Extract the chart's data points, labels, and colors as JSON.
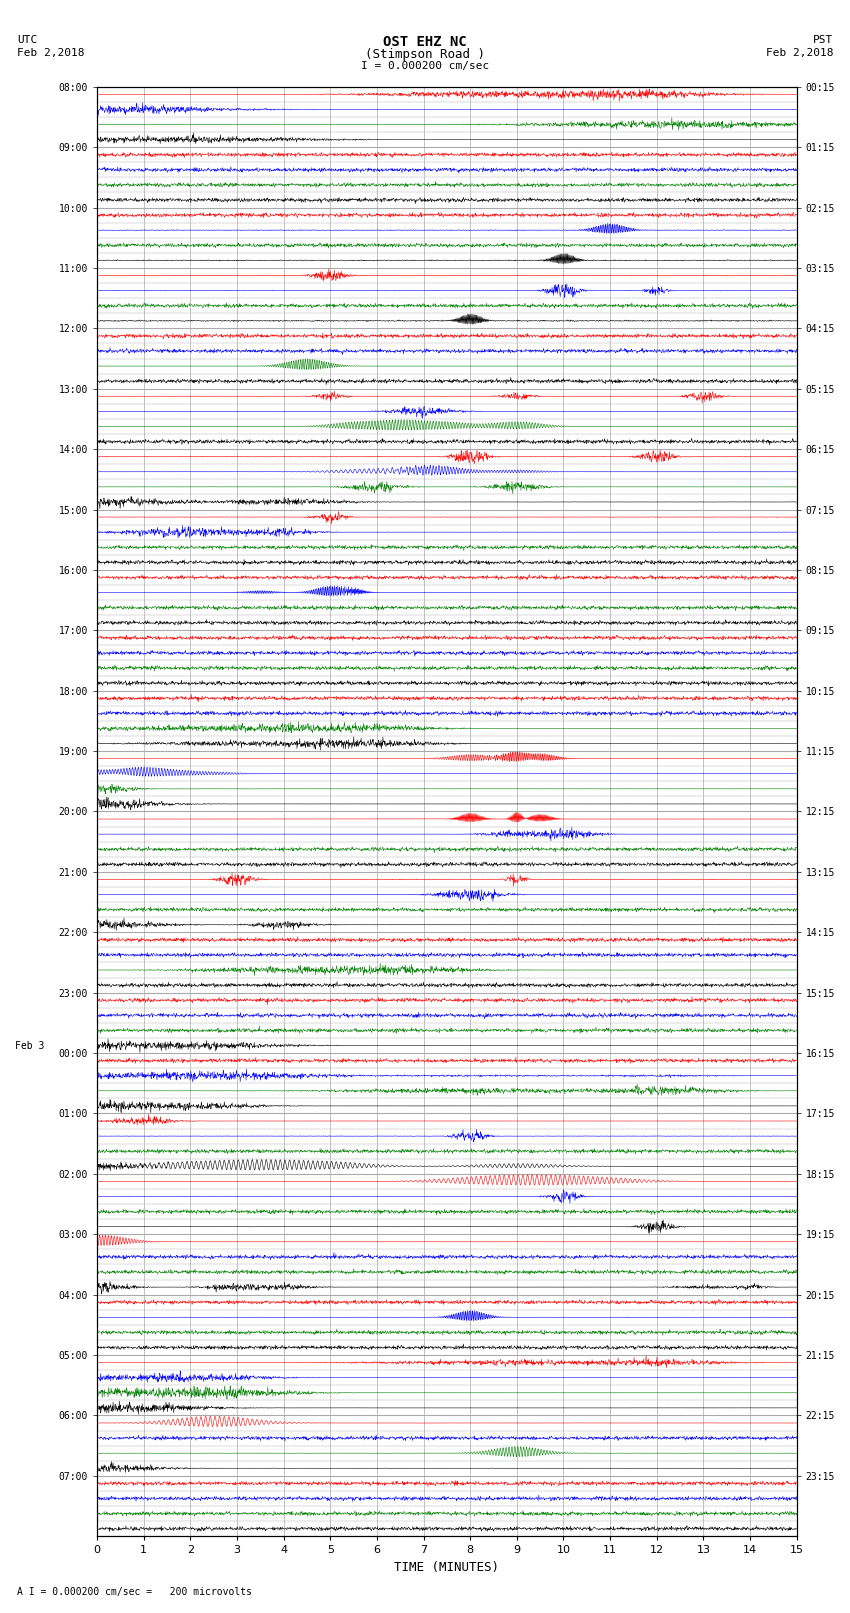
{
  "title_line1": "OST EHZ NC",
  "title_line2": "(Stimpson Road )",
  "scale_label": "I = 0.000200 cm/sec",
  "footer_label": "A I = 0.000200 cm/sec =   200 microvolts",
  "utc_label": "UTC",
  "utc_date": "Feb 2,2018",
  "pst_label": "PST",
  "pst_date": "Feb 2,2018",
  "xlabel": "TIME (MINUTES)",
  "bg_color": "#ffffff",
  "grid_color": "#aaaaaa",
  "n_minutes": 15,
  "seed": 12345,
  "left_times": [
    "08:00",
    "",
    "",
    "",
    "09:00",
    "",
    "",
    "",
    "10:00",
    "",
    "",
    "",
    "11:00",
    "",
    "",
    "",
    "12:00",
    "",
    "",
    "",
    "13:00",
    "",
    "",
    "",
    "14:00",
    "",
    "",
    "",
    "15:00",
    "",
    "",
    "",
    "16:00",
    "",
    "",
    "",
    "17:00",
    "",
    "",
    "",
    "18:00",
    "",
    "",
    "",
    "19:00",
    "",
    "",
    "",
    "20:00",
    "",
    "",
    "",
    "21:00",
    "",
    "",
    "",
    "22:00",
    "",
    "",
    "",
    "23:00",
    "",
    "",
    "",
    "Feb 3",
    "00:00",
    "",
    "",
    "",
    "01:00",
    "",
    "",
    "",
    "02:00",
    "",
    "",
    "",
    "03:00",
    "",
    "",
    "",
    "04:00",
    "",
    "",
    "",
    "05:00",
    "",
    "",
    "",
    "06:00",
    "",
    "",
    "",
    "07:00",
    "",
    "",
    ""
  ],
  "right_times": [
    "00:15",
    "",
    "",
    "",
    "01:15",
    "",
    "",
    "",
    "02:15",
    "",
    "",
    "",
    "03:15",
    "",
    "",
    "",
    "04:15",
    "",
    "",
    "",
    "05:15",
    "",
    "",
    "",
    "06:15",
    "",
    "",
    "",
    "07:15",
    "",
    "",
    "",
    "08:15",
    "",
    "",
    "",
    "09:15",
    "",
    "",
    "",
    "10:15",
    "",
    "",
    "",
    "11:15",
    "",
    "",
    "",
    "12:15",
    "",
    "",
    "",
    "13:15",
    "",
    "",
    "",
    "14:15",
    "",
    "",
    "",
    "15:15",
    "",
    "",
    "",
    "16:15",
    "",
    "",
    "",
    "17:15",
    "",
    "",
    "",
    "18:15",
    "",
    "",
    "",
    "19:15",
    "",
    "",
    "",
    "20:15",
    "",
    "",
    "",
    "21:15",
    "",
    "",
    "",
    "22:15",
    "",
    "",
    "",
    "23:15",
    "",
    "",
    ""
  ]
}
